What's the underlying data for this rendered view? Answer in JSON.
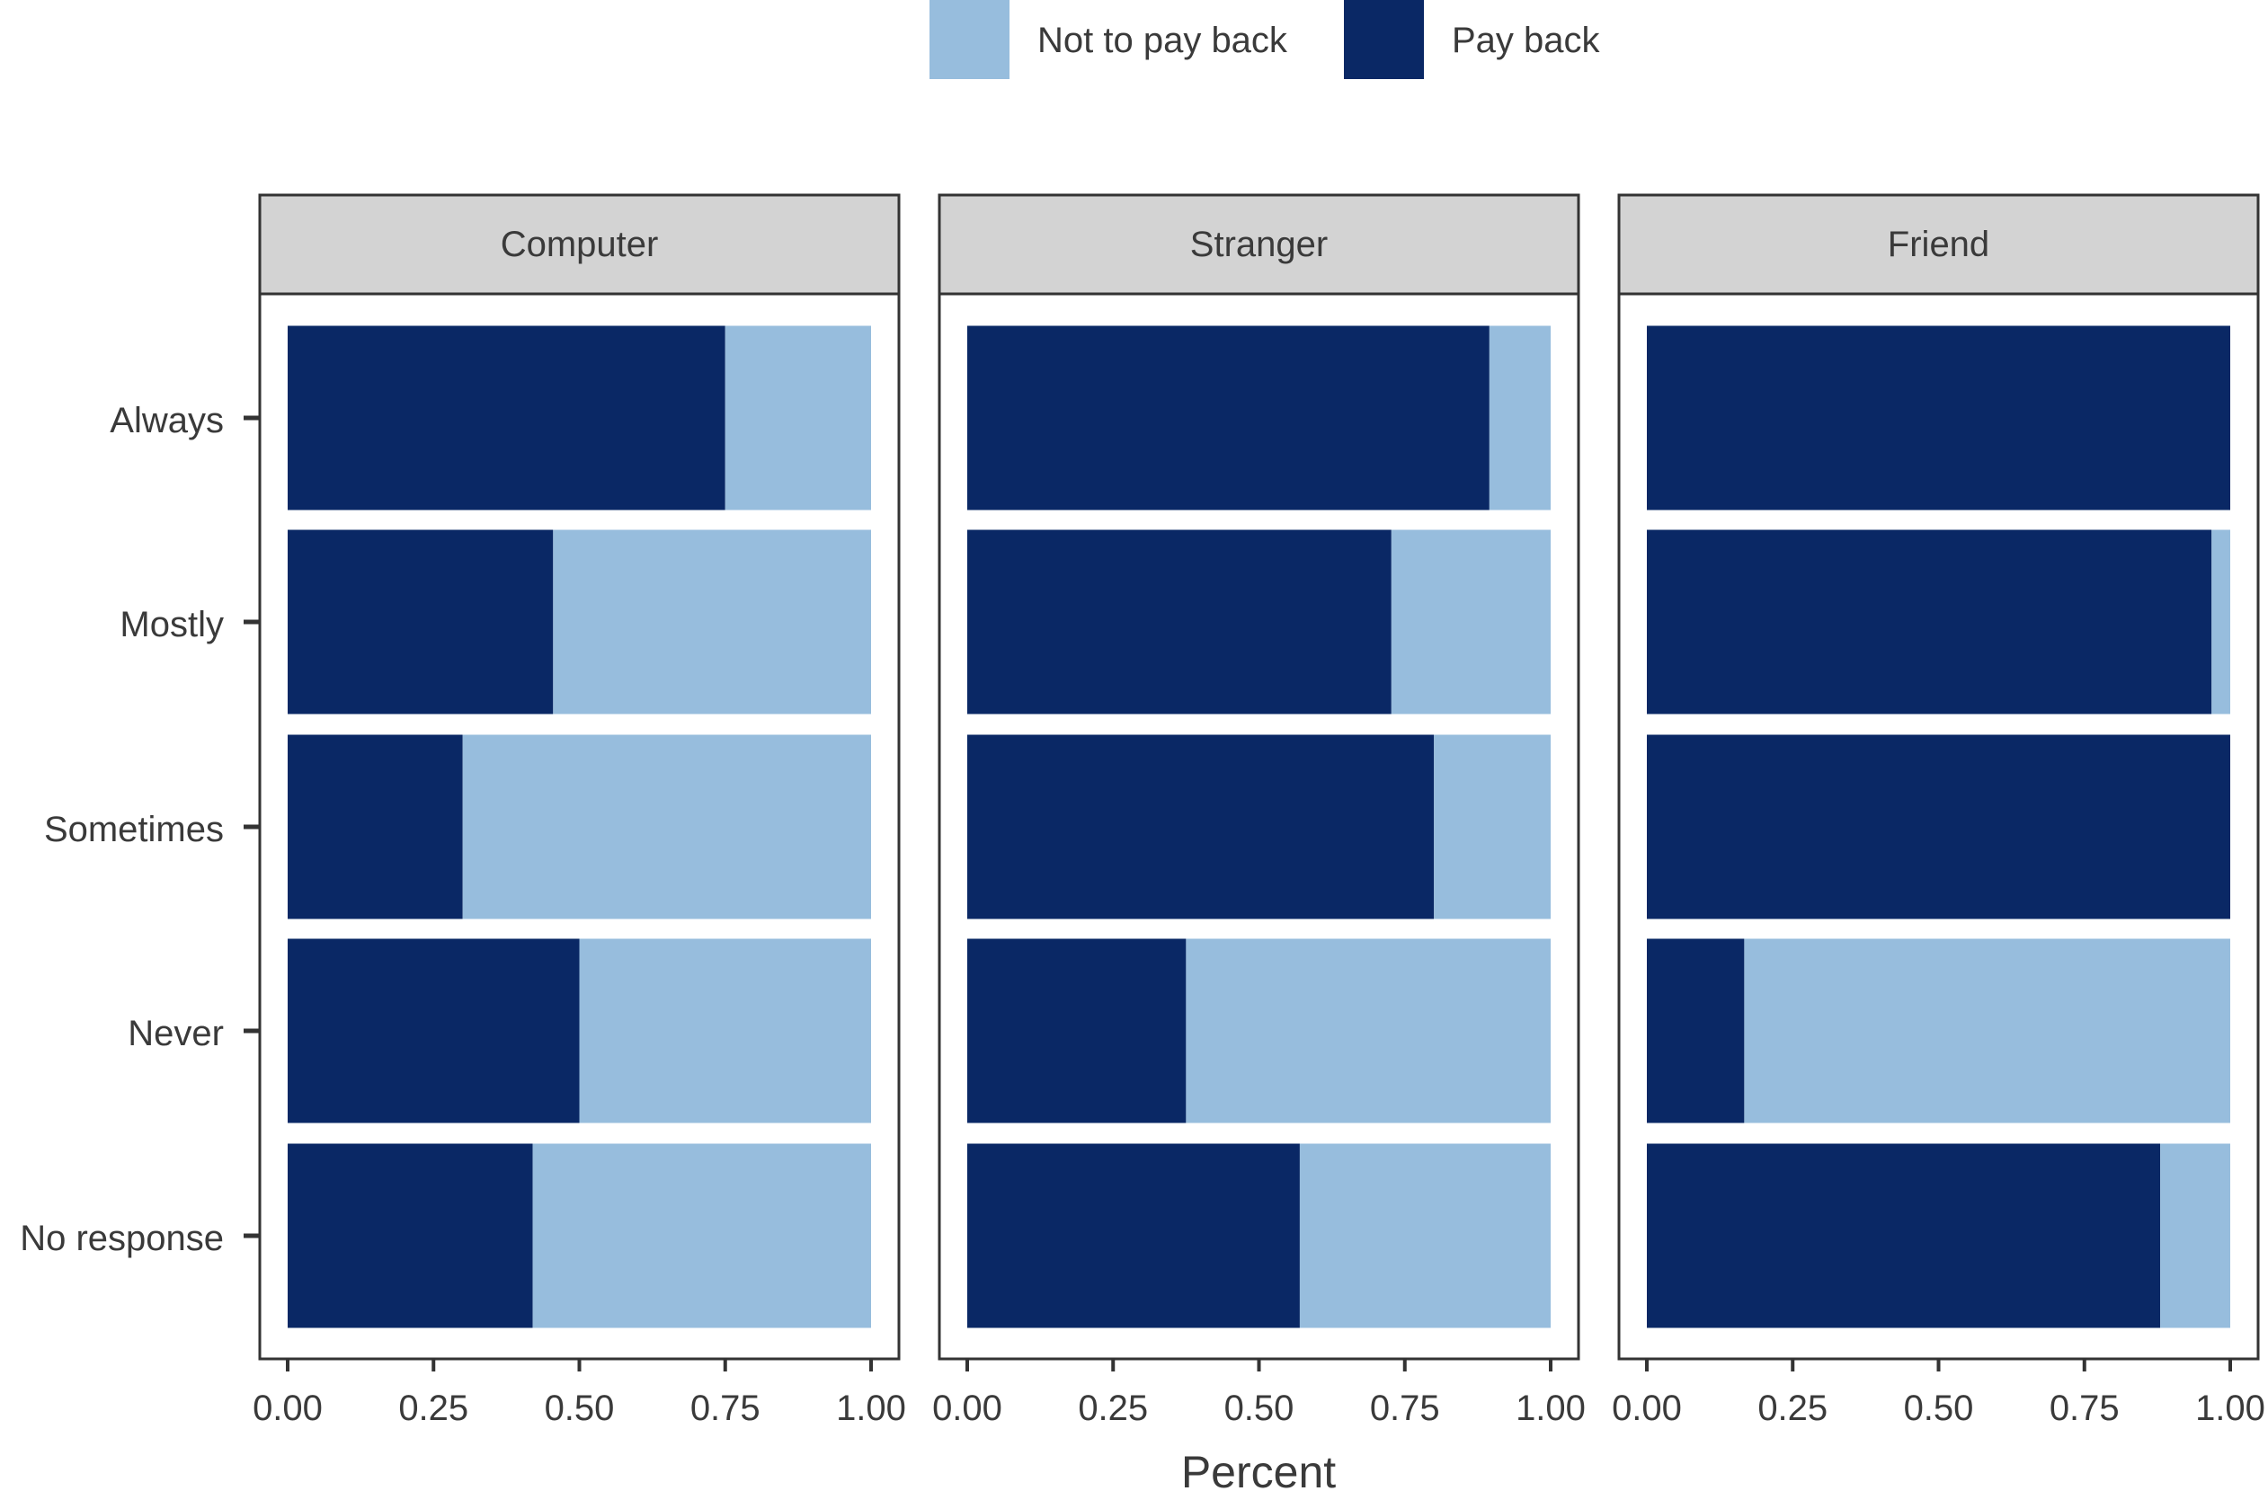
{
  "chart_data": {
    "type": "bar",
    "orientation": "horizontal",
    "stacked": true,
    "xlabel": "Percent",
    "ylabel": "",
    "xlim": [
      0,
      1
    ],
    "x_ticks": [
      "0.00",
      "0.25",
      "0.50",
      "0.75",
      "1.00"
    ],
    "categories": [
      "Always",
      "Mostly",
      "Sometimes",
      "Never",
      "No response"
    ],
    "legend_position": "top",
    "legend": [
      {
        "name": "Not to pay back",
        "color": "#97BDDD"
      },
      {
        "name": "Pay back",
        "color": "#0A2865"
      }
    ],
    "panels": [
      {
        "title": "Computer",
        "series": [
          {
            "name": "Pay back",
            "values": [
              0.75,
              0.455,
              0.3,
              0.5,
              0.42
            ]
          },
          {
            "name": "Not to pay back",
            "values": [
              0.25,
              0.545,
              0.7,
              0.5,
              0.58
            ]
          }
        ]
      },
      {
        "title": "Stranger",
        "series": [
          {
            "name": "Pay back",
            "values": [
              0.895,
              0.727,
              0.8,
              0.375,
              0.57
            ]
          },
          {
            "name": "Not to pay back",
            "values": [
              0.105,
              0.273,
              0.2,
              0.625,
              0.43
            ]
          }
        ]
      },
      {
        "title": "Friend",
        "series": [
          {
            "name": "Pay back",
            "values": [
              1.0,
              0.968,
              1.0,
              0.167,
              0.88
            ]
          },
          {
            "name": "Not to pay back",
            "values": [
              0.0,
              0.032,
              0.0,
              0.833,
              0.12
            ]
          }
        ]
      }
    ]
  }
}
